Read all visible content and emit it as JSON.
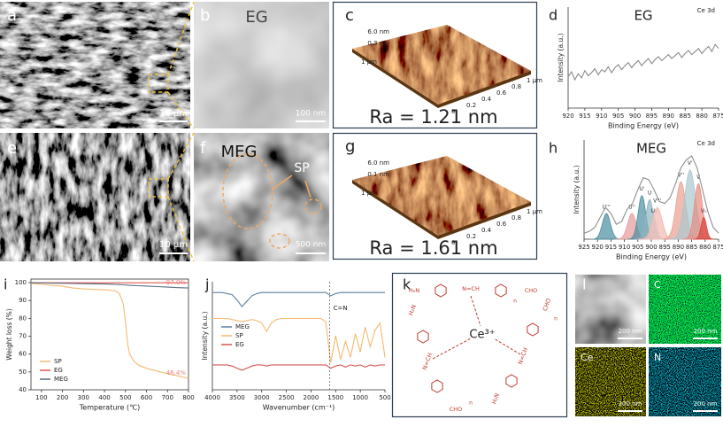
{
  "panels": {
    "a": {
      "label": "a",
      "scale": "10 μm"
    },
    "b": {
      "label": "b",
      "title": "EG",
      "scale": "100 nm"
    },
    "c": {
      "label": "c",
      "z_labels": [
        "6.0 nm",
        "0.3 nm"
      ],
      "y_label": "1 μm",
      "x_ticks": [
        "0",
        "0.2",
        "0.4",
        "0.6",
        "0.8",
        "1 μm"
      ],
      "ra": "Ra = 1.21 nm"
    },
    "e": {
      "label": "e",
      "scale": "10 μm"
    },
    "f": {
      "label": "f",
      "title": "MEG",
      "marker": "SP",
      "scale": "500 nm"
    },
    "g": {
      "label": "g",
      "z_labels": [
        "6.0 nm",
        "0.1 nm"
      ],
      "y_label": "1 μm",
      "x_ticks": [
        "0",
        "0.2",
        "0.4",
        "0.6",
        "0.8",
        "1 μm"
      ],
      "ra": "Ra = 1.61 nm"
    },
    "k": {
      "label": "k",
      "ion": "Ce³⁺",
      "chains": [
        {
          "amine": "H₂N",
          "imine": "N=CH",
          "aldehyde": "CHO",
          "repeat": "n"
        },
        {
          "amine": "H₂N",
          "imine": "N=CH",
          "aldehyde": "CHO",
          "repeat": "n"
        },
        {
          "amine": "H₂N",
          "imine": "N=CH",
          "aldehyde": "CHO",
          "repeat": "n"
        }
      ]
    },
    "l": {
      "label": "l",
      "maps": [
        {
          "element": null,
          "scale": "200 nm"
        },
        {
          "element": "C",
          "scale": "200 nm"
        },
        {
          "element": "Ce",
          "scale": "200 nm"
        },
        {
          "element": "N",
          "scale": "200 nm"
        }
      ]
    }
  },
  "chart_data": [
    {
      "type": "line",
      "panel_label": "d",
      "title": "EG",
      "annotation": "Ce 3d",
      "xlabel": "Binding Energy (eV)",
      "ylabel": "Intensity (a.u.)",
      "x": [
        920,
        919,
        918,
        917,
        916,
        915,
        914,
        913,
        912,
        911,
        910,
        909,
        908,
        907,
        906,
        905,
        904,
        903,
        902,
        901,
        900,
        899,
        898,
        897,
        896,
        895,
        894,
        893,
        892,
        891,
        890,
        889,
        888,
        887,
        886,
        885,
        884,
        883,
        882,
        881,
        880,
        879,
        878,
        877,
        876,
        875
      ],
      "xlim": [
        920,
        875
      ],
      "xticks": [
        920,
        915,
        910,
        905,
        900,
        895,
        890,
        885,
        880,
        875
      ],
      "ylim": [
        0,
        10
      ],
      "series": [
        {
          "color": "#8a8a8a",
          "values": [
            3.1,
            3.6,
            2.8,
            3.4,
            3.0,
            3.7,
            3.2,
            3.5,
            3.9,
            3.3,
            3.8,
            3.6,
            4.1,
            3.5,
            4.0,
            4.3,
            3.8,
            4.2,
            4.5,
            4.0,
            4.4,
            4.7,
            4.2,
            4.6,
            4.9,
            4.4,
            4.8,
            5.1,
            4.7,
            5.0,
            5.3,
            4.9,
            5.2,
            5.5,
            5.0,
            5.4,
            5.7,
            5.3,
            5.6,
            5.9,
            5.4,
            5.8,
            6.1,
            5.6,
            6.3,
            5.9
          ]
        }
      ]
    },
    {
      "type": "line",
      "panel_label": "h",
      "title": "MEG",
      "annotation": "Ce 3d",
      "xlabel": "Binding Energy (eV)",
      "ylabel": "Intensity (a.u.)",
      "x": [
        925,
        923,
        921,
        919,
        917,
        915,
        913,
        911,
        909,
        907,
        905,
        903,
        901,
        899,
        897,
        895,
        893,
        891,
        889,
        887,
        885,
        883,
        881,
        879,
        877,
        875
      ],
      "xlim": [
        925,
        875
      ],
      "xticks": [
        925,
        920,
        915,
        910,
        905,
        900,
        895,
        890,
        885,
        880,
        875
      ],
      "ylim": [
        0,
        10
      ],
      "series": [
        {
          "color": "#8f8f8f",
          "values": [
            0.6,
            0.8,
            1.2,
            2.2,
            3.2,
            2.6,
            1.5,
            1.8,
            3.0,
            3.6,
            5.0,
            6.2,
            6.0,
            5.0,
            3.8,
            3.6,
            4.2,
            5.6,
            7.2,
            8.0,
            8.4,
            7.2,
            5.0,
            2.8,
            1.2,
            0.6
          ]
        }
      ],
      "peaks": [
        {
          "label": "U'''",
          "center": 916.7,
          "height": 2.6,
          "width": 1.5,
          "color": "#4a8fa0"
        },
        {
          "label": "U''",
          "center": 907.2,
          "height": 2.6,
          "width": 1.6,
          "color": "#e89a9a"
        },
        {
          "label": "U'",
          "center": 903.5,
          "height": 4.4,
          "width": 1.4,
          "color": "#4a8fa0"
        },
        {
          "label": "U",
          "center": 900.6,
          "height": 4.0,
          "width": 1.4,
          "color": "#8fb3bd"
        },
        {
          "label": "U₀",
          "center": 899.0,
          "height": 2.2,
          "width": 1.0,
          "color": "#c9dde2"
        },
        {
          "label": "V'''",
          "center": 897.8,
          "height": 3.2,
          "width": 1.8,
          "color": "#f2b8b0"
        },
        {
          "label": "V''",
          "center": 889.0,
          "height": 5.8,
          "width": 1.8,
          "color": "#eaa090"
        },
        {
          "label": "V'",
          "center": 885.6,
          "height": 7.0,
          "width": 2.0,
          "color": "#a9c7cf"
        },
        {
          "label": "V",
          "center": 882.5,
          "height": 5.6,
          "width": 1.5,
          "color": "#e88a80"
        },
        {
          "label": "V₀",
          "center": 880.5,
          "height": 2.2,
          "width": 1.0,
          "color": "#d9443c"
        }
      ]
    },
    {
      "type": "line",
      "panel_label": "i",
      "xlabel": "Temperature (℃)",
      "ylabel": "Weight loss (%)",
      "x": [
        50,
        100,
        150,
        200,
        250,
        300,
        350,
        400,
        450,
        470,
        490,
        500,
        510,
        520,
        540,
        560,
        600,
        650,
        700,
        750,
        800
      ],
      "xlim": [
        50,
        800
      ],
      "xticks": [
        100,
        200,
        300,
        400,
        500,
        600,
        700,
        800
      ],
      "ylim": [
        40,
        102
      ],
      "yticks": [
        40,
        50,
        60,
        70,
        80,
        90,
        100
      ],
      "legend": "lower left",
      "series": [
        {
          "name": "SP",
          "color": "#f5b971",
          "values": [
            99.5,
            99,
            98.5,
            98,
            97,
            96.5,
            96.2,
            96,
            95.5,
            94,
            88,
            78,
            66,
            60,
            56,
            54,
            52,
            50.5,
            49,
            47.8,
            46.4
          ],
          "value_labels": [
            null,
            null,
            null,
            null,
            null,
            null,
            null,
            null,
            null,
            null,
            null,
            null,
            null,
            null,
            null,
            null,
            null,
            null,
            null,
            null,
            "46.4%"
          ]
        },
        {
          "name": "EG",
          "color": "#e0584f",
          "values": [
            99.9,
            99.9,
            99.9,
            99.9,
            99.9,
            99.9,
            99.9,
            99.9,
            99.9,
            99.9,
            99.9,
            99.9,
            99.9,
            99.9,
            99.9,
            99.9,
            99.9,
            99.9,
            99.9,
            99.9,
            99.9
          ]
        },
        {
          "name": "MEG",
          "color": "#5a6e86",
          "values": [
            99.9,
            99.8,
            99.7,
            99.6,
            99.5,
            99.4,
            99.3,
            99.2,
            99.0,
            98.9,
            98.8,
            98.7,
            98.6,
            98.5,
            98.4,
            98.3,
            98.1,
            97.8,
            97.5,
            97.2,
            97.0
          ],
          "value_labels": [
            null,
            null,
            null,
            null,
            null,
            null,
            null,
            null,
            null,
            null,
            null,
            null,
            null,
            null,
            null,
            null,
            null,
            null,
            null,
            null,
            "97.0%"
          ]
        }
      ]
    },
    {
      "type": "line",
      "panel_label": "j",
      "xlabel": "Wavenumber (cm⁻¹)",
      "ylabel": "Intensity (a.u.)",
      "x": [
        4000,
        3900,
        3800,
        3700,
        3600,
        3500,
        3400,
        3300,
        3200,
        3100,
        3000,
        2900,
        2800,
        2700,
        2600,
        2500,
        2400,
        2300,
        2200,
        2100,
        2000,
        1900,
        1800,
        1700,
        1600,
        1500,
        1400,
        1300,
        1200,
        1100,
        1000,
        900,
        800,
        700,
        600,
        500
      ],
      "xlim": [
        4000,
        500
      ],
      "xticks": [
        4000,
        3500,
        3000,
        2500,
        2000,
        1500,
        1000,
        500
      ],
      "ylim": [
        0,
        10
      ],
      "legend": "center left",
      "marker": {
        "label": "C=N",
        "x": 1620
      },
      "series": [
        {
          "name": "MEG",
          "color": "#5b7fa0",
          "values": [
            9.0,
            9.0,
            9.0,
            8.9,
            8.8,
            8.3,
            7.7,
            8.2,
            8.7,
            8.9,
            9.0,
            9.0,
            9.0,
            9.0,
            9.0,
            9.0,
            9.0,
            9.0,
            9.0,
            9.0,
            9.0,
            9.0,
            9.0,
            9.0,
            8.7,
            8.9,
            9.0,
            9.0,
            9.0,
            9.0,
            9.0,
            9.0,
            9.0,
            9.0,
            9.0,
            9.0
          ]
        },
        {
          "name": "SP",
          "color": "#f5b971",
          "values": [
            6.6,
            6.6,
            6.6,
            6.6,
            6.5,
            6.4,
            6.3,
            6.4,
            6.5,
            6.4,
            6.2,
            5.4,
            6.2,
            6.5,
            6.6,
            6.6,
            6.6,
            6.6,
            6.6,
            6.6,
            6.6,
            6.6,
            6.6,
            6.3,
            2.5,
            5.0,
            2.8,
            4.5,
            3.0,
            5.2,
            3.5,
            5.8,
            4.0,
            5.5,
            6.2,
            3.0
          ]
        },
        {
          "name": "EG",
          "color": "#d9534f",
          "values": [
            2.3,
            2.3,
            2.3,
            2.3,
            2.2,
            2.0,
            1.8,
            2.0,
            2.2,
            2.3,
            2.3,
            2.2,
            2.3,
            2.3,
            2.3,
            2.3,
            2.3,
            2.3,
            2.3,
            2.3,
            2.3,
            2.3,
            2.3,
            2.3,
            2.0,
            2.2,
            2.3,
            2.1,
            2.3,
            2.2,
            2.3,
            2.1,
            2.3,
            2.2,
            2.3,
            2.3
          ]
        }
      ]
    }
  ]
}
